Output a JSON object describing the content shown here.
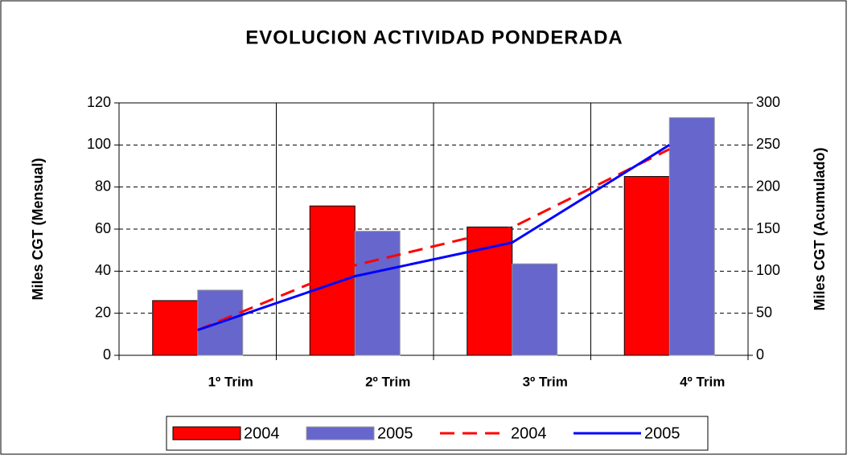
{
  "chart_data": {
    "type": "bar",
    "title": "EVOLUCION ACTIVIDAD PONDERADA",
    "y_label": "Miles CGT (Mensual)",
    "y2_label": "Miles CGT (Acumulado)",
    "categories": [
      "1º Trim",
      "2º Trim",
      "3º Trim",
      "4º Trim"
    ],
    "series": [
      {
        "name": "2004",
        "type": "bar",
        "color": "#ff0000",
        "values": [
          26,
          71,
          61,
          85
        ]
      },
      {
        "name": "2005",
        "type": "bar",
        "color": "#6666cc",
        "values": [
          31,
          59,
          43.5,
          113
        ]
      },
      {
        "name": "2004",
        "type": "line",
        "axis": "y2",
        "dashed": true,
        "color": "#ff0000",
        "values": [
          30,
          107,
          152,
          245
        ]
      },
      {
        "name": "2005",
        "type": "line",
        "axis": "y2",
        "color": "#0000ff",
        "values": [
          30,
          94,
          134,
          250
        ]
      }
    ],
    "ylim": [
      0,
      120
    ],
    "yticks": [
      0,
      20,
      40,
      60,
      80,
      100,
      120
    ],
    "y2lim": [
      0,
      300
    ],
    "y2ticks": [
      0,
      50,
      100,
      150,
      200,
      250,
      300
    ],
    "grid": true,
    "legend": "bottom"
  }
}
